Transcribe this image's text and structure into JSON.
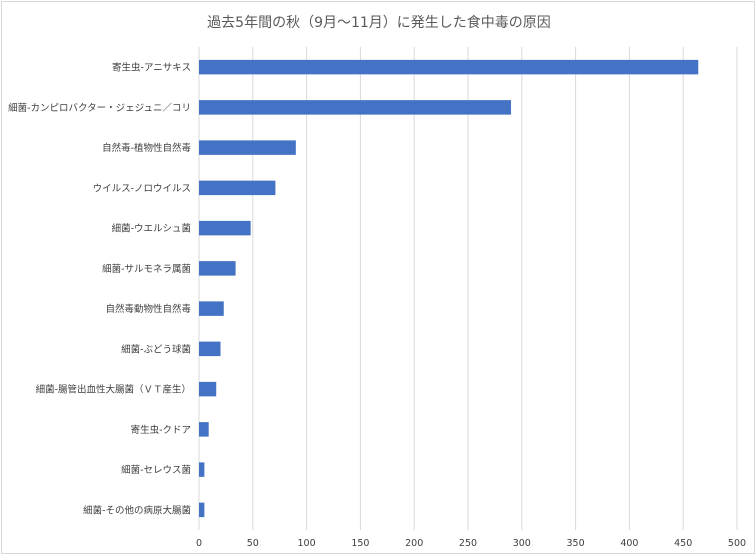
{
  "chart_data": {
    "type": "bar",
    "orientation": "horizontal",
    "title": "過去5年間の秋（9月～11月）に発生した食中毒の原因",
    "categories": [
      "寄生虫-アニサキス",
      "細菌-カンピロバクター・ジェジュニ／コリ",
      "自然毒-植物性自然毒",
      "ウイルス-ノロウイルス",
      "細菌-ウエルシュ菌",
      "細菌-サルモネラ属菌",
      "自然毒動物性自然毒",
      "細菌-ぶどう球菌",
      "細菌-腸管出血性大腸菌（ＶＴ産生）",
      "寄生虫-クドア",
      "細菌-セレウス菌",
      "細菌-その他の病原大腸菌"
    ],
    "values": [
      464,
      290,
      90,
      71,
      48,
      34,
      23,
      20,
      16,
      9,
      5,
      5
    ],
    "xlim": [
      0,
      500
    ],
    "xticks": [
      0,
      50,
      100,
      150,
      200,
      250,
      300,
      350,
      400,
      450,
      500
    ],
    "grid": "vertical",
    "legend": "none",
    "bar_color": "#4472c4",
    "grid_color": "#d9d9d9"
  }
}
